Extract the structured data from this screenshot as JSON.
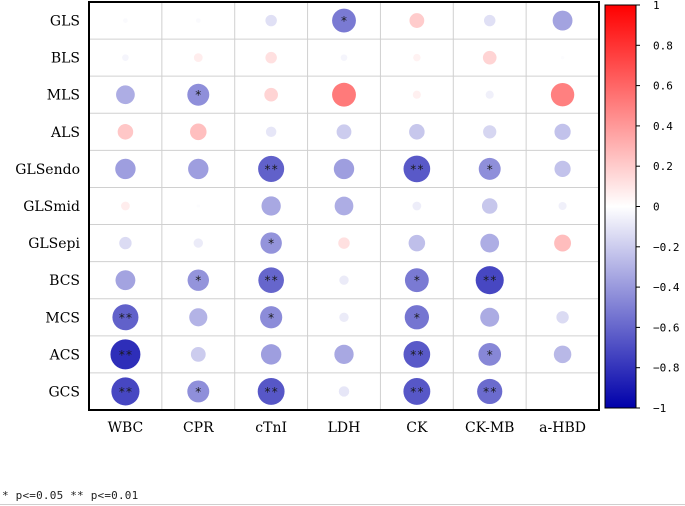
{
  "chart_data": {
    "type": "heatmap",
    "subtype": "correlation-circle-matrix",
    "rows": [
      "GLS",
      "BLS",
      "MLS",
      "ALS",
      "GLSendo",
      "GLSmid",
      "GLSepi",
      "BCS",
      "MCS",
      "ACS",
      "GCS"
    ],
    "columns": [
      "WBC",
      "CPR",
      "cTnI",
      "LDH",
      "CK",
      "CK-MB",
      "a-HBD"
    ],
    "values": [
      [
        -0.02,
        -0.02,
        -0.12,
        -0.52,
        0.2,
        -0.12,
        -0.36
      ],
      [
        -0.04,
        0.07,
        0.12,
        -0.04,
        0.05,
        0.17,
        -0.01
      ],
      [
        -0.32,
        -0.44,
        0.17,
        0.52,
        0.06,
        -0.06,
        0.5
      ],
      [
        0.22,
        0.25,
        -0.1,
        -0.2,
        -0.22,
        -0.16,
        -0.24
      ],
      [
        -0.38,
        -0.38,
        -0.62,
        -0.38,
        -0.65,
        -0.44,
        -0.24
      ],
      [
        0.07,
        -0.01,
        -0.34,
        -0.32,
        -0.07,
        -0.22,
        -0.06
      ],
      [
        -0.14,
        -0.08,
        -0.42,
        0.12,
        -0.25,
        -0.32,
        0.26
      ],
      [
        -0.36,
        -0.42,
        -0.6,
        -0.08,
        -0.52,
        -0.72,
        0.0
      ],
      [
        -0.62,
        -0.3,
        -0.45,
        -0.08,
        -0.54,
        -0.33,
        -0.14
      ],
      [
        -0.82,
        -0.2,
        -0.38,
        -0.34,
        -0.65,
        -0.47,
        -0.28
      ],
      [
        -0.72,
        -0.44,
        -0.66,
        -0.1,
        -0.66,
        -0.58,
        0.0
      ]
    ],
    "significance": [
      [
        "",
        "",
        "",
        "*",
        "",
        "",
        ""
      ],
      [
        "",
        "",
        "",
        "",
        "",
        "",
        ""
      ],
      [
        "",
        "*",
        "",
        "",
        "",
        "",
        ""
      ],
      [
        "",
        "",
        "",
        "",
        "",
        "",
        ""
      ],
      [
        "",
        "",
        "**",
        "",
        "**",
        "*",
        ""
      ],
      [
        "",
        "",
        "",
        "",
        "",
        "",
        ""
      ],
      [
        "",
        "",
        "*",
        "",
        "",
        "",
        ""
      ],
      [
        "",
        "*",
        "**",
        "",
        "*",
        "**",
        ""
      ],
      [
        "**",
        "",
        "*",
        "",
        "*",
        "",
        ""
      ],
      [
        "**",
        "",
        "",
        "",
        "**",
        "*",
        ""
      ],
      [
        "**",
        "*",
        "**",
        "",
        "**",
        "**",
        ""
      ]
    ],
    "colorbar": {
      "range": [
        -1,
        1
      ],
      "ticks": [
        "1",
        "0.8",
        "0.6",
        "0.4",
        "0.2",
        "0",
        "−0.2",
        "−0.4",
        "−0.6",
        "−0.8",
        "−1"
      ],
      "tick_values": [
        1,
        0.8,
        0.6,
        0.4,
        0.2,
        0,
        -0.2,
        -0.4,
        -0.6,
        -0.8,
        -1
      ],
      "colors": {
        "positive": "#ff0000",
        "zero": "#ffffff",
        "negative": "#0000aa"
      }
    },
    "grid": true,
    "legend": "right"
  },
  "footnote": "* p<=0.05  ** p<=0.01"
}
